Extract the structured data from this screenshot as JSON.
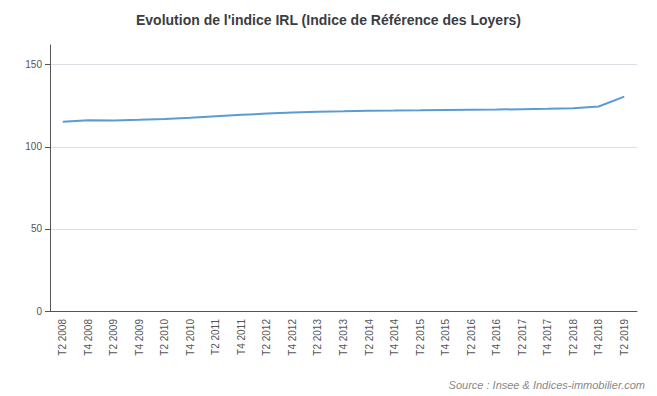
{
  "chart_data": {
    "type": "line",
    "title": "Evolution de l'indice IRL (Indice de Référence des Loyers)",
    "source": "Source : Insee & Indices-immobilier.com",
    "categories": [
      "T2 2008",
      "T4 2008",
      "T2 2009",
      "T4 2009",
      "T2 2010",
      "T4 2010",
      "T2 2011",
      "T4 2011",
      "T2 2012",
      "T4 2012",
      "T2 2013",
      "T4 2013",
      "T2 2014",
      "T4 2014",
      "T2 2015",
      "T4 2015",
      "T2 2016",
      "T4 2016",
      "T2 2017",
      "T4 2017",
      "T2 2018",
      "T4 2018",
      "T2 2019"
    ],
    "values": [
      115.24,
      116.11,
      116.06,
      116.42,
      116.96,
      117.76,
      118.64,
      119.48,
      120.21,
      120.84,
      121.37,
      121.62,
      121.98,
      122.1,
      122.26,
      122.44,
      122.58,
      122.7,
      122.91,
      123.15,
      123.55,
      124.53,
      130.57
    ],
    "color": "#5b9bd5",
    "ylim": [
      0,
      162
    ],
    "yticks": [
      0,
      50,
      100,
      150
    ],
    "grid": true
  }
}
